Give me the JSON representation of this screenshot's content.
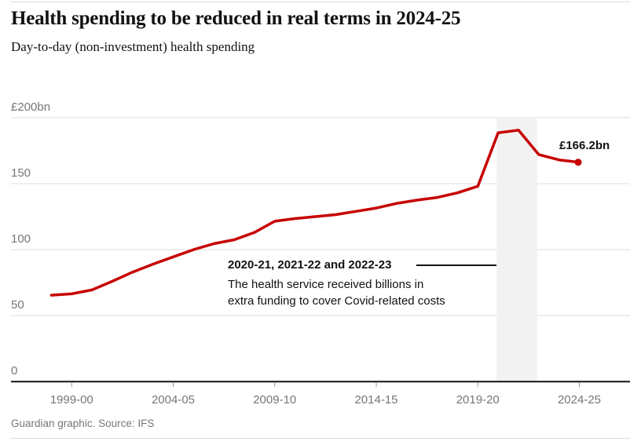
{
  "page": {
    "title": "Health spending to be reduced in real terms in 2024-25",
    "subtitle": "Day-to-day (non-investment) health spending",
    "footer": "Guardian graphic. Source: IFS"
  },
  "annotation": {
    "heading": "2020-21, 2021-22 and 2022-23",
    "body_line1": "The health service received billions in",
    "body_line2": "extra funding to cover Covid-related costs"
  },
  "colors": {
    "line": "#c70000",
    "dot": "#c70000",
    "band": "#f2f2f2",
    "gridline": "#dcdcdc",
    "axis": "#121212",
    "tick": "#999999",
    "axis_text": "#767676",
    "text": "#121212"
  },
  "chart_data": {
    "type": "line",
    "title": "Health spending to be reduced in real terms in 2024-25",
    "subtitle": "Day-to-day (non-investment) health spending",
    "series_name": "Day-to-day (non-investment) health spending",
    "unit": "£bn (real terms)",
    "categories": [
      "1998-99",
      "1999-00",
      "2000-01",
      "2001-02",
      "2002-03",
      "2003-04",
      "2004-05",
      "2005-06",
      "2006-07",
      "2007-08",
      "2008-09",
      "2009-10",
      "2010-11",
      "2011-12",
      "2012-13",
      "2013-14",
      "2014-15",
      "2015-16",
      "2016-17",
      "2017-18",
      "2018-19",
      "2019-20",
      "2020-21",
      "2021-22",
      "2022-23",
      "2023-24",
      "2024-25"
    ],
    "values": [
      65.5,
      66.5,
      69.5,
      76,
      83,
      89,
      94.5,
      100,
      104.5,
      107.5,
      113,
      121.5,
      123.5,
      125,
      126.5,
      129,
      131.5,
      135,
      137.5,
      139.5,
      143,
      148,
      188.5,
      190.5,
      172,
      168,
      166.2
    ],
    "ylim": [
      0,
      200
    ],
    "grid": true,
    "yticks": [
      {
        "value": 200,
        "label": "£200bn"
      },
      {
        "value": 150,
        "label": "150"
      },
      {
        "value": 100,
        "label": "100"
      },
      {
        "value": 50,
        "label": "50"
      },
      {
        "value": 0,
        "label": "0"
      }
    ],
    "xticks": [
      {
        "index": 1,
        "label": "1999-00"
      },
      {
        "index": 6,
        "label": "2004-05"
      },
      {
        "index": 11,
        "label": "2009-10"
      },
      {
        "index": 16,
        "label": "2014-15"
      },
      {
        "index": 21,
        "label": "2019-20"
      },
      {
        "index": 26,
        "label": "2024-25"
      }
    ],
    "highlight_band": {
      "from": "2020-21",
      "to": "2022-23"
    },
    "end_point": {
      "year": "2024-25",
      "value": 166.2,
      "label": "£166.2bn"
    },
    "annotation": {
      "heading": "2020-21, 2021-22 and 2022-23",
      "text": "The health service received billions in extra funding to cover Covid-related costs"
    }
  }
}
